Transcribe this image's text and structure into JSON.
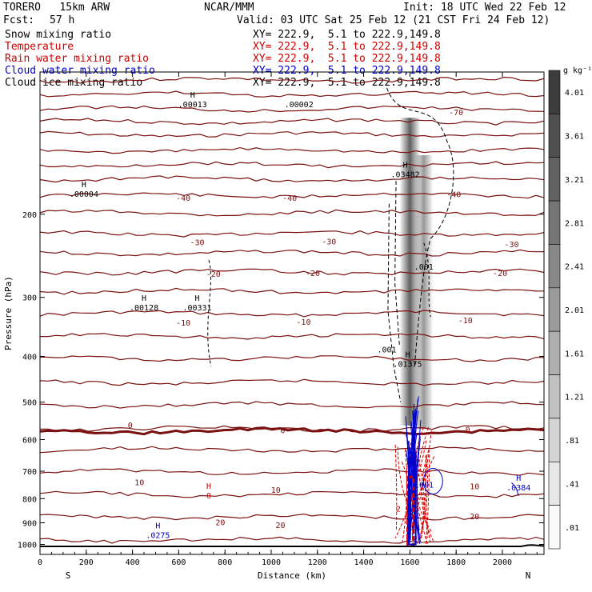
{
  "header": {
    "model": "TORERO   15km ARW",
    "org": "NCAR/MMM",
    "init": "Init: 18 UTC Wed 22 Feb 12",
    "fcst_label": "Fcst:",
    "fcst_value": "57 h",
    "valid": "Valid: 03 UTC Sat 25 Feb 12 (21 CST Fri 24 Feb 12)"
  },
  "fields": [
    {
      "name": "Snow mixing ratio",
      "color": "#000000",
      "xy": "XY= 222.9,  5.1 to 222.9,149.8"
    },
    {
      "name": "Temperature",
      "color": "#cc0000",
      "xy": "XY= 222.9,  5.1 to 222.9,149.8"
    },
    {
      "name": "Rain water mixing ratio",
      "color": "#cc0000",
      "xy": "XY= 222.9,  5.1 to 222.9,149.8"
    },
    {
      "name": "Cloud water mixing ratio",
      "color": "#0000cc",
      "xy": "XY= 222.9,  5.1 to 222.9,149.8"
    },
    {
      "name": "Cloud ice mixing ratio",
      "color": "#000000",
      "xy": "XY= 222.9,  5.1 to 222.9,149.8"
    }
  ],
  "colors": {
    "temperature": "#7a1010",
    "rain": "#dd0000",
    "cloud_water": "#0000cc",
    "ice": "#000000",
    "shade": "#555555"
  },
  "chart_data": {
    "type": "contour",
    "xlabel": "Distance (km)",
    "ylabel": "Pressure (hPa)",
    "xlim": [
      0,
      2180
    ],
    "ylim": [
      1050,
      100
    ],
    "y_scale": "log",
    "x_ticks": [
      0,
      200,
      400,
      600,
      800,
      1000,
      1200,
      1400,
      1600,
      1800,
      2000
    ],
    "y_ticks": [
      200,
      300,
      400,
      500,
      600,
      700,
      800,
      900,
      1000
    ],
    "left_end_label": "S",
    "right_end_label": "N",
    "colorbar": {
      "units": "g kg⁻¹",
      "labels": [
        "4.01",
        "3.61",
        "3.21",
        "2.81",
        "2.41",
        "2.01",
        "1.61",
        "1.21",
        ".81",
        ".41",
        ".01"
      ]
    },
    "temperature_labels": [
      {
        "t": "-70",
        "x": 1800,
        "p": 122
      },
      {
        "t": "-40",
        "x": 620,
        "p": 185
      },
      {
        "t": "-40",
        "x": 1080,
        "p": 185
      },
      {
        "t": "-40",
        "x": 1790,
        "p": 182
      },
      {
        "t": "-30",
        "x": 680,
        "p": 230
      },
      {
        "t": "-30",
        "x": 1250,
        "p": 229
      },
      {
        "t": "-30",
        "x": 2040,
        "p": 232
      },
      {
        "t": "-20",
        "x": 750,
        "p": 268
      },
      {
        "t": "-20",
        "x": 1180,
        "p": 267
      },
      {
        "t": "-20",
        "x": 1990,
        "p": 267
      },
      {
        "t": "-10",
        "x": 620,
        "p": 340
      },
      {
        "t": "-10",
        "x": 1140,
        "p": 339
      },
      {
        "t": "-10",
        "x": 1840,
        "p": 336
      },
      {
        "t": "0",
        "x": 390,
        "p": 560
      },
      {
        "t": "0",
        "x": 1050,
        "p": 575
      },
      {
        "t": "0",
        "x": 1850,
        "p": 573
      },
      {
        "t": "10",
        "x": 430,
        "p": 740
      },
      {
        "t": "10",
        "x": 1020,
        "p": 768
      },
      {
        "t": "10",
        "x": 1880,
        "p": 755
      },
      {
        "t": "20",
        "x": 780,
        "p": 900
      },
      {
        "t": "20",
        "x": 1040,
        "p": 912
      },
      {
        "t": "20",
        "x": 1880,
        "p": 874
      }
    ],
    "extrema": [
      {
        "marker": "H",
        "value": ".00013",
        "x": 660,
        "p": 115,
        "color": "#000000"
      },
      {
        "marker": "",
        "value": ".00002",
        "x": 1120,
        "p": 115,
        "color": "#000000"
      },
      {
        "marker": "H",
        "value": ".00004",
        "x": 190,
        "p": 178,
        "color": "#000000"
      },
      {
        "marker": "H",
        "value": ".03482",
        "x": 1580,
        "p": 162,
        "color": "#000000"
      },
      {
        "marker": "H",
        "value": ".00128",
        "x": 450,
        "p": 310,
        "color": "#000000"
      },
      {
        "marker": "H",
        "value": ".00331",
        "x": 680,
        "p": 310,
        "color": "#000000"
      },
      {
        "marker": "H",
        "value": ".01375",
        "x": 1590,
        "p": 408,
        "color": "#000000"
      },
      {
        "marker": "",
        "value": ".001",
        "x": 1660,
        "p": 254,
        "color": "#000000"
      },
      {
        "marker": "",
        "value": ".001",
        "x": 1500,
        "p": 380,
        "color": "#000000"
      },
      {
        "marker": "H",
        "value": ".0384",
        "x": 2070,
        "p": 745,
        "color": "#0000cc"
      },
      {
        "marker": "H",
        "value": ".0275",
        "x": 510,
        "p": 940,
        "color": "#0000cc"
      },
      {
        "marker": "H",
        "value": "0",
        "x": 730,
        "p": 775,
        "color": "#cc0000"
      },
      {
        "marker": "",
        "value": ".01001",
        "x": 1640,
        "p": 735,
        "color": "#0000cc"
      },
      {
        "marker": "",
        "value": "2",
        "x": 1550,
        "p": 826,
        "color": "#cc0000"
      }
    ]
  }
}
